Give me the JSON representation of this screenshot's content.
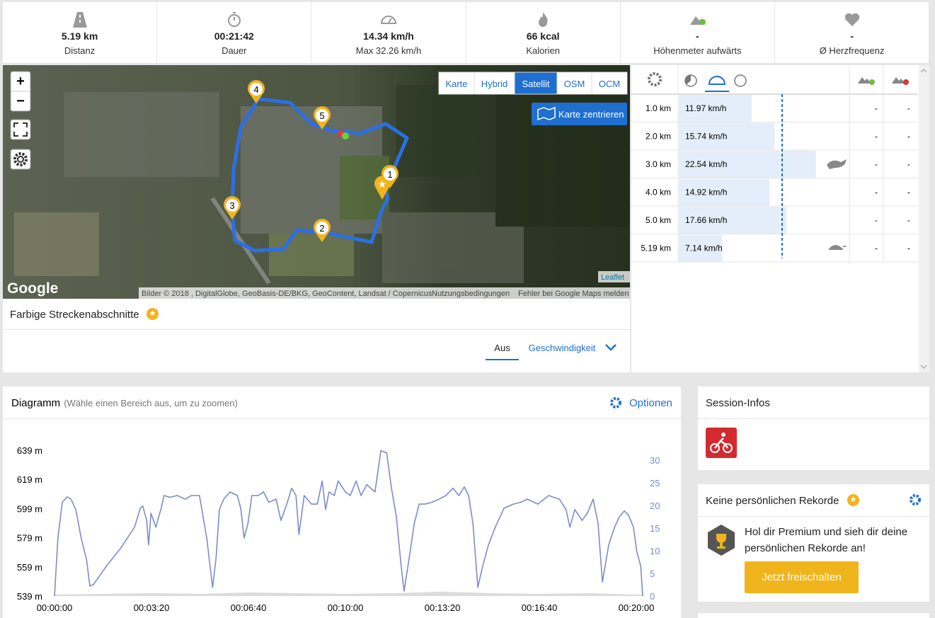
{
  "stats": [
    {
      "value": "5.19 km",
      "label": "Distanz"
    },
    {
      "value": "00:21:42",
      "label": "Dauer"
    },
    {
      "value": "14.34 km/h",
      "label": "Max 32.26 km/h"
    },
    {
      "value": "66 kcal",
      "label": "Kalorien"
    },
    {
      "value": "-",
      "label": "Höhenmeter aufwärts"
    },
    {
      "value": "-",
      "label": "Ø Herzfrequenz"
    }
  ],
  "map": {
    "layers": [
      "Karte",
      "Hybrid",
      "Satellit",
      "OSM",
      "OCM"
    ],
    "active_layer": 2,
    "center_button": "Karte zentrieren",
    "markers": [
      "1",
      "2",
      "3",
      "4",
      "5"
    ],
    "zoom_in": "+",
    "zoom_out": "−",
    "logo": "Google",
    "attribution": "Bilder © 2018 , DigitalGlobe, GeoBasis-DE/BKG, GeoContent, Landsat / Copernicus",
    "terms": "Nutzungsbedingungen",
    "report": "Fehler bei Google Maps melden",
    "leaflet": "Leaflet"
  },
  "segments": {
    "title": "Farbige Streckenabschnitte",
    "options": [
      "Aus",
      "Geschwindigkeit"
    ],
    "active_option": 0
  },
  "splits": {
    "rows": [
      [
        "1.0 km",
        "11.97 km/h",
        "-",
        "-"
      ],
      [
        "2.0 km",
        "15.74 km/h",
        "-",
        "-"
      ],
      [
        "3.0 km",
        "22.54 km/h",
        "-",
        "-"
      ],
      [
        "4.0 km",
        "14.92 km/h",
        "-",
        "-"
      ],
      [
        "5.0 km",
        "17.66 km/h",
        "-",
        "-"
      ],
      [
        "5.19 km",
        "7.14 km/h",
        "-",
        "-"
      ]
    ]
  },
  "chart_data": {
    "type": "line",
    "title": "Diagramm",
    "subtitle": "(Wähle einen Bereich aus, um zu zoomen)",
    "options": "Optionen",
    "xlim": [
      0,
      1213
    ],
    "xticks": [
      {
        "value": 0,
        "label": "00:00:00"
      },
      {
        "value": 200,
        "label": "00:03:20"
      },
      {
        "value": 400,
        "label": "00:06:40"
      },
      {
        "value": 600,
        "label": "00:10:00"
      },
      {
        "value": 800,
        "label": "00:13:20"
      },
      {
        "value": 1000,
        "label": "00:16:40"
      },
      {
        "value": 1200,
        "label": "00:20:00"
      }
    ],
    "ylim": [
      539,
      639
    ],
    "yticks": [
      {
        "value": 539,
        "label": "539 m"
      },
      {
        "value": 559,
        "label": "559 m"
      },
      {
        "value": 579,
        "label": "579 m"
      },
      {
        "value": 599,
        "label": "599 m"
      },
      {
        "value": 619,
        "label": "619 m"
      },
      {
        "value": 639,
        "label": "639 m"
      }
    ],
    "y2lim": [
      0,
      32.2
    ],
    "y2ticks": [
      0,
      5,
      10,
      15,
      20,
      25,
      30
    ],
    "y2_color": "#7b8ccc",
    "grid": false,
    "series": [
      {
        "color": "#dcdcdc",
        "area": true,
        "x": [
          0,
          100,
          200,
          300,
          400,
          500,
          600,
          700,
          800,
          900,
          1000,
          1100,
          1200,
          1213
        ],
        "values": [
          540,
          540.5,
          541,
          540.5,
          541.5,
          541,
          540.5,
          541,
          542,
          541,
          540.5,
          541,
          540,
          540
        ]
      },
      {
        "color": "#7b8ccc",
        "axis": "y2",
        "x": [
          0,
          7,
          16,
          26,
          34,
          44,
          55,
          66,
          73,
          80,
          107,
          136,
          165,
          177,
          182,
          190,
          194,
          199,
          209,
          220,
          226,
          238,
          253,
          270,
          282,
          299,
          314,
          326,
          333,
          340,
          349,
          362,
          377,
          384,
          391,
          399,
          407,
          420,
          431,
          442,
          457,
          467,
          479,
          489,
          498,
          504,
          515,
          530,
          542,
          552,
          559,
          566,
          577,
          585,
          600,
          610,
          622,
          632,
          644,
          661,
          673,
          685,
          695,
          705,
          715,
          721,
          731,
          742,
          752,
          764,
          778,
          793,
          807,
          822,
          834,
          845,
          854,
          863,
          873,
          883,
          895,
          909,
          927,
          946,
          961,
          975,
          997,
          1019,
          1041,
          1055,
          1063,
          1073,
          1088,
          1099,
          1111,
          1121,
          1130,
          1143,
          1155,
          1165,
          1175,
          1184,
          1194,
          1201,
          1209,
          1213
        ],
        "values": [
          0,
          12.8,
          20.7,
          21.9,
          21.4,
          19.1,
          12.8,
          8.1,
          2.2,
          2.5,
          6.6,
          10.5,
          15.2,
          19.4,
          19.9,
          16.7,
          11.3,
          18.3,
          15.2,
          19.4,
          22.2,
          21.8,
          22.2,
          21.4,
          22.2,
          22.2,
          12.8,
          1.9,
          8.1,
          19.1,
          21.4,
          23.0,
          22.2,
          19.4,
          12.8,
          16.0,
          22.2,
          22.2,
          23.0,
          20.7,
          21.4,
          16.7,
          20.3,
          23.8,
          22.2,
          13.6,
          22.2,
          20.3,
          20.3,
          25.4,
          19.1,
          23.0,
          22.2,
          25.4,
          23.0,
          22.2,
          25.4,
          22.2,
          24.6,
          23.0,
          32.1,
          31.6,
          23.8,
          17.5,
          6.6,
          1.1,
          8.1,
          16.0,
          20.3,
          20.3,
          20.7,
          21.4,
          22.2,
          23.8,
          22.2,
          24.1,
          22.2,
          16.0,
          1.9,
          6.6,
          11.3,
          15.2,
          19.4,
          20.3,
          20.7,
          21.4,
          20.3,
          22.2,
          21.4,
          19.1,
          15.2,
          19.1,
          16.7,
          18.3,
          21.4,
          16.0,
          3.1,
          11.3,
          15.2,
          17.5,
          18.8,
          17.8,
          15.2,
          9.7,
          6.6,
          0
        ]
      }
    ]
  },
  "session": {
    "title": "Session-Infos"
  },
  "records": {
    "title": "Keine persönlichen Rekorde",
    "text": "Hol dir Premium und sieh dir deine persönlichen Rekorde an!",
    "button": "Jetzt freischalten"
  }
}
